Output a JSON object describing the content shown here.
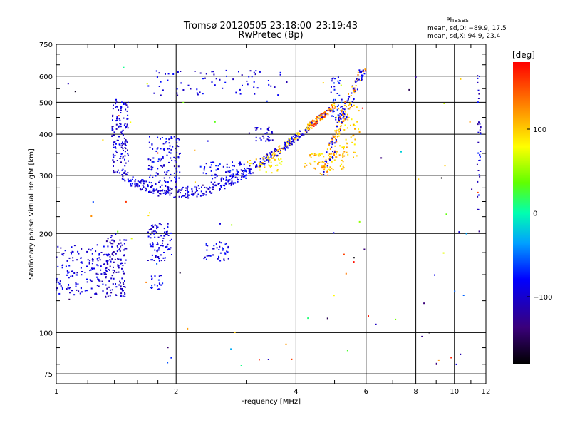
{
  "chart_data": {
    "type": "scatter",
    "title": "Tromsø 20120505 23:18:00–23:19:43",
    "subtitle": "RwPretec (8p)",
    "xlabel": "Frequency [MHz]",
    "ylabel": "Stationary phase Virtual Height [km]",
    "x_scale": "log",
    "y_scale": "log",
    "xlim": [
      1,
      12
    ],
    "ylim": [
      70,
      750
    ],
    "x_ticks": [
      1,
      2,
      4,
      6,
      8,
      10,
      12
    ],
    "x_tick_labels": [
      "1",
      "2",
      "4",
      "6",
      "8",
      "10",
      "12"
    ],
    "y_ticks": [
      75,
      100,
      200,
      300,
      400,
      500,
      600,
      750
    ],
    "y_tick_labels": [
      "75",
      "100",
      "200",
      "300",
      "400",
      "500",
      "600",
      "750"
    ],
    "grid": true,
    "phases": {
      "heading": "Phases",
      "line_o": "mean, sd,O: −89.9, 17.5",
      "line_x": "mean, sd,X:  94.9, 23.4"
    },
    "colorbar": {
      "label": "[deg]",
      "range": [
        -180,
        180
      ],
      "ticks": [
        100,
        0,
        -100
      ],
      "tick_labels": [
        "100",
        "0",
        "−100"
      ],
      "colormap": "rainbow"
    },
    "clusters": [
      {
        "f": [
          1.0,
          1.35
        ],
        "h": [
          130,
          185
        ],
        "phase": -95,
        "n": 160
      },
      {
        "f": [
          1.33,
          1.5
        ],
        "h": [
          128,
          200
        ],
        "phase": -105,
        "n": 120
      },
      {
        "f": [
          1.38,
          1.52
        ],
        "h": [
          300,
          510
        ],
        "phase": -98,
        "n": 140
      },
      {
        "f": [
          1.7,
          1.95
        ],
        "h": [
          165,
          215
        ],
        "phase": -95,
        "n": 90
      },
      {
        "f": [
          1.72,
          1.85
        ],
        "h": [
          135,
          150
        ],
        "phase": -80,
        "n": 20
      },
      {
        "f": [
          1.7,
          2.05
        ],
        "h": [
          285,
          395
        ],
        "phase": -90,
        "n": 110
      },
      {
        "f": [
          2.35,
          2.75
        ],
        "h": [
          165,
          190
        ],
        "phase": -90,
        "n": 40
      },
      {
        "f": [
          1.75,
          3.8
        ],
        "h": [
          525,
          625
        ],
        "phase": -95,
        "n": 70
      },
      {
        "f": [
          3.15,
          3.5
        ],
        "h": [
          380,
          420
        ],
        "phase": -100,
        "n": 30
      },
      {
        "f": [
          2.3,
          3.0
        ],
        "h": [
          290,
          330
        ],
        "phase": -85,
        "n": 60
      },
      {
        "f": [
          3.0,
          3.7
        ],
        "h": [
          305,
          340
        ],
        "phase": 90,
        "n": 40
      },
      {
        "f": [
          4.2,
          5.3
        ],
        "h": [
          310,
          350
        ],
        "phase": 105,
        "n": 70
      },
      {
        "f": [
          5.0,
          5.8
        ],
        "h": [
          340,
          500
        ],
        "phase": 100,
        "n": 60
      },
      {
        "f": [
          4.9,
          5.3
        ],
        "h": [
          430,
          600
        ],
        "phase": -80,
        "n": 50
      }
    ]
  }
}
